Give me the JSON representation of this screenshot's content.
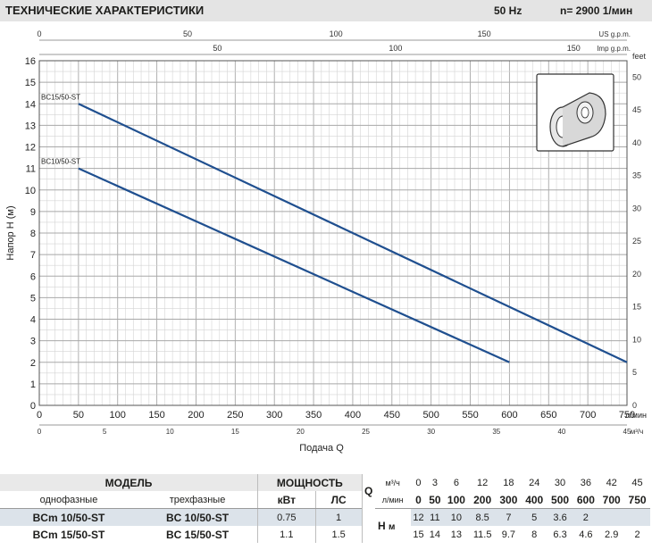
{
  "header": {
    "title": "ТЕХНИЧЕСКИЕ ХАРАКТЕРИСТИКИ",
    "frequency": "50 Hz",
    "speed": "n= 2900  1/мин"
  },
  "chart_data": {
    "type": "line",
    "xlabel": "Подача  Q",
    "ylabel": "Напор H (м)",
    "x_unit": "л/мин",
    "x2_unit": "м³/ч",
    "top_scale1_unit": "US g.p.m.",
    "top_scale2_unit": "Imp g.p.m.",
    "right_unit": "feet",
    "xlim": [
      0,
      750
    ],
    "ylim": [
      0,
      16
    ],
    "grid": true,
    "x_ticks": [
      "0",
      "50",
      "100",
      "150",
      "200",
      "250",
      "300",
      "350",
      "400",
      "450",
      "500",
      "550",
      "600",
      "650",
      "700",
      "750"
    ],
    "y_ticks": [
      "0",
      "1",
      "2",
      "3",
      "4",
      "5",
      "6",
      "7",
      "8",
      "9",
      "10",
      "11",
      "12",
      "13",
      "14",
      "15",
      "16"
    ],
    "m3h_ticks": [
      {
        "x": 0,
        "label": "0"
      },
      {
        "x": 83.33,
        "label": "5"
      },
      {
        "x": 166.67,
        "label": "10"
      },
      {
        "x": 250,
        "label": "15"
      },
      {
        "x": 333.33,
        "label": "20"
      },
      {
        "x": 416.67,
        "label": "25"
      },
      {
        "x": 500,
        "label": "30"
      },
      {
        "x": 583.33,
        "label": "35"
      },
      {
        "x": 666.67,
        "label": "40"
      },
      {
        "x": 750,
        "label": "45"
      }
    ],
    "us_gpm_ticks": [
      {
        "x": 0,
        "label": "0"
      },
      {
        "x": 189.27,
        "label": "50"
      },
      {
        "x": 378.54,
        "label": "100"
      },
      {
        "x": 567.81,
        "label": "150"
      }
    ],
    "imp_gpm_ticks": [
      {
        "x": 227.3,
        "label": "50"
      },
      {
        "x": 454.6,
        "label": "100"
      },
      {
        "x": 681.9,
        "label": "150"
      }
    ],
    "feet_ticks": [
      {
        "y": 0,
        "label": "0"
      },
      {
        "y": 1.524,
        "label": "5"
      },
      {
        "y": 3.048,
        "label": "10"
      },
      {
        "y": 4.572,
        "label": "15"
      },
      {
        "y": 6.096,
        "label": "20"
      },
      {
        "y": 7.62,
        "label": "25"
      },
      {
        "y": 9.144,
        "label": "30"
      },
      {
        "y": 10.668,
        "label": "35"
      },
      {
        "y": 12.192,
        "label": "40"
      },
      {
        "y": 13.716,
        "label": "45"
      },
      {
        "y": 15.24,
        "label": "50"
      }
    ],
    "series": [
      {
        "name": "BC15/50-ST",
        "x": [
          50,
          750
        ],
        "y": [
          14,
          2
        ]
      },
      {
        "name": "BC10/50-ST",
        "x": [
          50,
          600
        ],
        "y": [
          11,
          2
        ]
      }
    ]
  },
  "table": {
    "model_header": "МОДЕЛЬ",
    "single_phase_header": "однофазные",
    "three_phase_header": "трехфазные",
    "power_header": "МОЩНОСТЬ",
    "kw_header": "кВт",
    "hp_header": "ЛС",
    "q_label": "Q",
    "m3h_unit": "м³/ч",
    "lmin_unit": "л/мин",
    "h_label": "H",
    "h_unit": "м",
    "q_m3h": [
      "0",
      "3",
      "6",
      "12",
      "18",
      "24",
      "30",
      "36",
      "42",
      "45"
    ],
    "q_lmin": [
      "0",
      "50",
      "100",
      "200",
      "300",
      "400",
      "500",
      "600",
      "700",
      "750"
    ],
    "rows": [
      {
        "single": "BCm 10/50-ST",
        "three": "BC 10/50-ST",
        "kw": "0.75",
        "hp": "1",
        "h": [
          "12",
          "11",
          "10",
          "8.5",
          "7",
          "5",
          "3.6",
          "2",
          "",
          ""
        ]
      },
      {
        "single": "BCm 15/50-ST",
        "three": "BC 15/50-ST",
        "kw": "1.1",
        "hp": "1.5",
        "h": [
          "15",
          "14",
          "13",
          "11.5",
          "9.7",
          "8",
          "6.3",
          "4.6",
          "2.9",
          "2"
        ]
      }
    ]
  }
}
